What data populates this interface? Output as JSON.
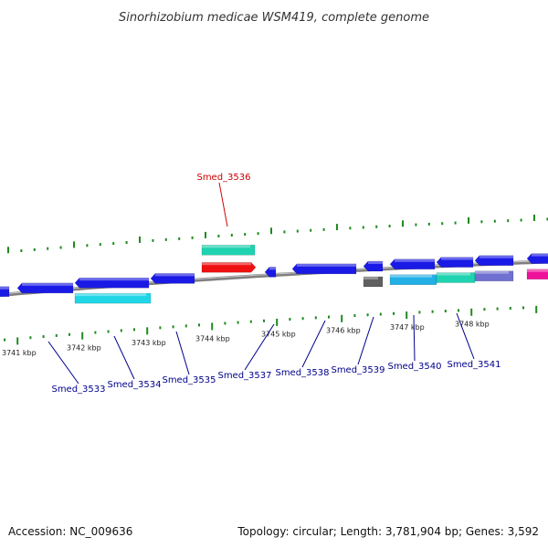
{
  "title": "Sinorhizobium medicae WSM419, complete genome",
  "footer": {
    "accession": "Accession: NC_009636",
    "topology": "Topology: circular; Length: 3,781,904 bp; Genes: 3,592"
  },
  "kbp_labels": [
    "3741 kbp",
    "3742 kbp",
    "3743 kbp",
    "3744 kbp",
    "3745 kbp",
    "3746 kbp",
    "3747 kbp",
    "3748 kbp"
  ],
  "gene_labels": {
    "top": [
      "Smed_3536"
    ],
    "bottom": [
      "Smed_3533",
      "Smed_3534",
      "Smed_3535",
      "Smed_3537",
      "Smed_3538",
      "Smed_3539",
      "Smed_3540",
      "Smed_3541"
    ]
  },
  "colors": {
    "backbone": "#7f7f7f",
    "tick": "#1f8a1f",
    "gene_blue": "#1a1ae6",
    "gene_cyan": "#20d6e6",
    "gene_teal": "#1fd3b0",
    "gene_red": "#ee1111",
    "gene_grey": "#606060",
    "gene_lightblue": "#22b0e6",
    "gene_purple": "#7070d0",
    "gene_magenta": "#ee1199",
    "label_red": "#cc0000",
    "label_blue": "#00008b"
  }
}
